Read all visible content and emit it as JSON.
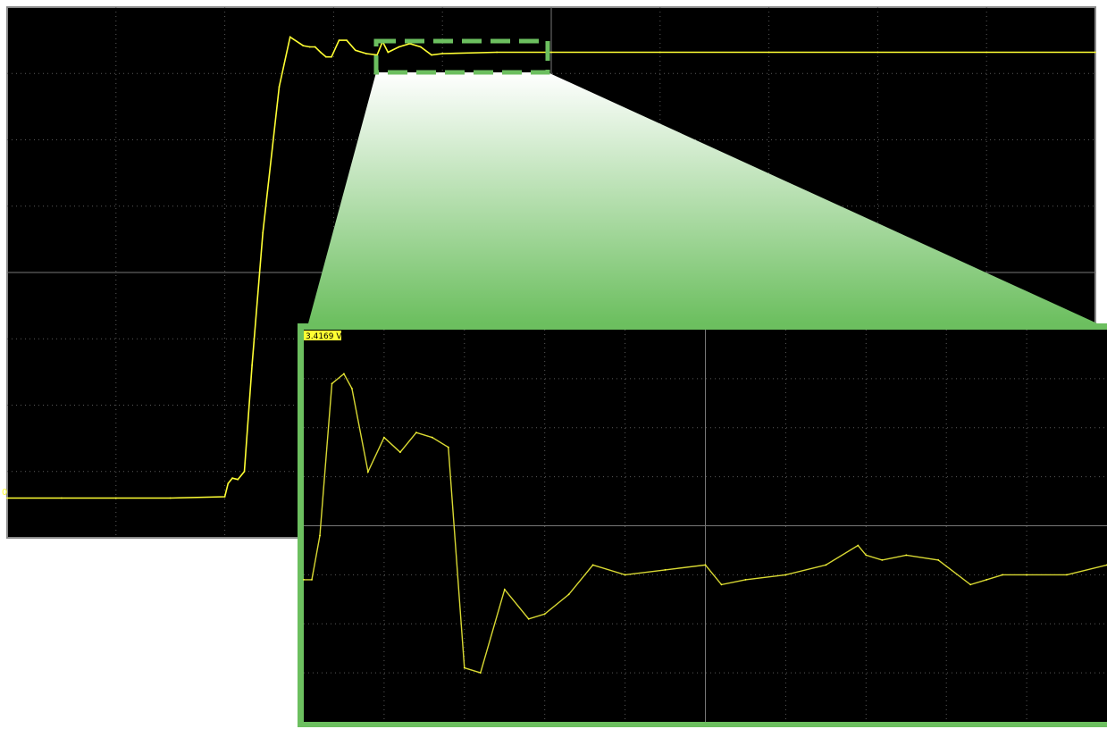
{
  "colors": {
    "background": "#000000",
    "grid": "#5a5a5a",
    "trace": "#ffff33",
    "highlight": "#6cbf5f",
    "page": "#ffffff"
  },
  "main_scope": {
    "grid_divisions": {
      "x": 10,
      "y": 8
    },
    "ground_marker": "0",
    "chart_data": {
      "type": "line",
      "title": "",
      "xlabel": "",
      "ylabel": "",
      "xlim": [
        0,
        10
      ],
      "ylim": [
        0,
        8
      ],
      "units": "divisions",
      "series": [
        {
          "x": [
            0,
            0.5,
            1.0,
            1.5,
            2.0,
            2.03,
            2.07,
            2.12,
            2.18,
            2.25,
            2.35,
            2.5,
            2.6,
            2.72,
            2.78,
            2.83,
            2.88,
            2.93,
            2.98,
            3.05,
            3.12,
            3.2,
            3.3,
            3.4,
            3.45,
            3.5,
            3.6,
            3.7,
            3.8,
            3.9,
            4.0,
            4.5,
            5.0,
            6.0,
            7.0,
            8.0,
            9.0,
            10.0
          ],
          "y": [
            0.6,
            0.6,
            0.6,
            0.6,
            0.62,
            0.82,
            0.9,
            0.88,
            1.0,
            2.6,
            4.6,
            6.8,
            7.55,
            7.42,
            7.4,
            7.4,
            7.32,
            7.25,
            7.25,
            7.5,
            7.5,
            7.35,
            7.3,
            7.28,
            7.48,
            7.32,
            7.4,
            7.45,
            7.4,
            7.28,
            7.3,
            7.32,
            7.32,
            7.32,
            7.32,
            7.32,
            7.32,
            7.32
          ]
        }
      ]
    }
  },
  "zoom_region": {
    "x_range": [
      3.4,
      5.0
    ],
    "y_range": [
      7.2,
      7.75
    ]
  },
  "zoom_scope": {
    "readout": "3.4169 V",
    "grid_divisions": {
      "x": 10,
      "y": 8
    },
    "chart_data": {
      "type": "line",
      "title": "",
      "xlabel": "",
      "ylabel": "",
      "xlim": [
        0,
        10
      ],
      "ylim": [
        0,
        8
      ],
      "units": "divisions",
      "series": [
        {
          "x": [
            0,
            0.1,
            0.2,
            0.35,
            0.5,
            0.6,
            0.8,
            1.0,
            1.2,
            1.4,
            1.6,
            1.8,
            2.0,
            2.2,
            2.5,
            2.8,
            3.0,
            3.3,
            3.6,
            4.0,
            4.5,
            5.0,
            5.2,
            5.5,
            6.0,
            6.5,
            6.9,
            7.0,
            7.2,
            7.5,
            7.9,
            8.3,
            8.5,
            8.7,
            9.0,
            9.5,
            10.0
          ],
          "y": [
            2.9,
            2.9,
            3.8,
            6.9,
            7.1,
            6.8,
            5.1,
            5.8,
            5.5,
            5.9,
            5.8,
            5.6,
            1.1,
            1.0,
            2.7,
            2.1,
            2.2,
            2.6,
            3.2,
            3.0,
            3.1,
            3.2,
            2.8,
            2.9,
            3.0,
            3.2,
            3.6,
            3.4,
            3.3,
            3.4,
            3.3,
            2.8,
            2.9,
            3.0,
            3.0,
            3.0,
            3.2
          ]
        }
      ]
    }
  }
}
